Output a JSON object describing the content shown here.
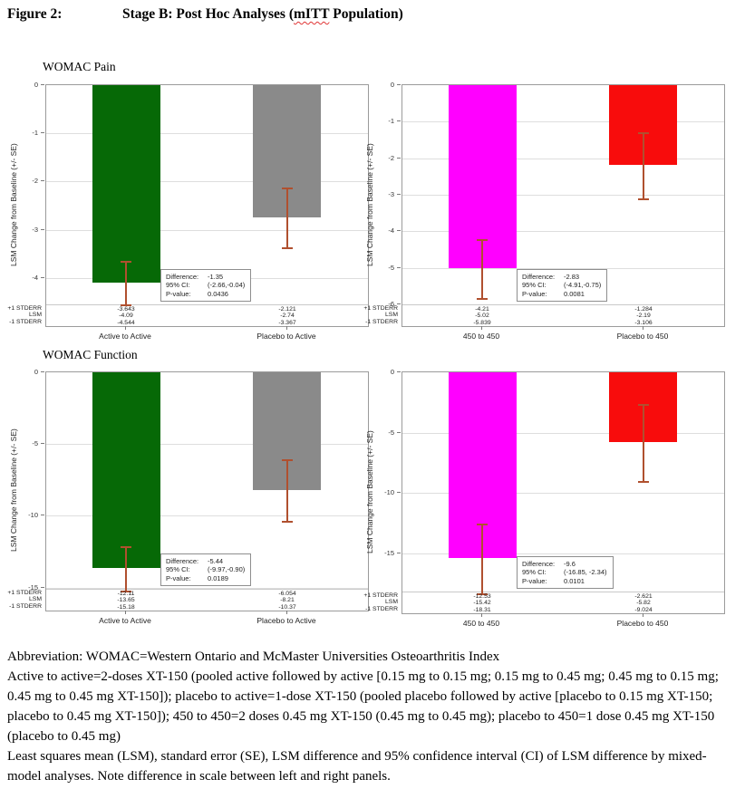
{
  "figure": {
    "label": "Figure 2:",
    "title_before": "Stage B: Post Hoc Analyses (",
    "title_misspelled": "mITT",
    "title_after": " Population)"
  },
  "stat_labels": {
    "difference": "Difference:",
    "ci": "95% CI:",
    "pvalue": "P-value:"
  },
  "row_labels": [
    "+1 STDERR",
    "LSM",
    "-1 STDERR"
  ],
  "colors": {
    "active_to_active": "#066906",
    "placebo_to_active": "#8a8a8a",
    "dose_450_to_450": "#ff00ff",
    "placebo_to_450": "#f80c0c",
    "error_bar": "#b0502f"
  },
  "chart_data": [
    {
      "type": "bar",
      "id": "womac-pain-pooled-active",
      "title": "WOMAC Pain",
      "ylabel": "LSM Change from Baseline (+/- SE)",
      "yticks": [
        0,
        -1,
        -2,
        -3,
        -4
      ],
      "ylim": [
        -5,
        0
      ],
      "categories": [
        "Active to Active",
        "Placebo to Active"
      ],
      "bars": [
        {
          "category": "Active to Active",
          "color_key": "active_to_active",
          "lsm": -4.09,
          "plus1_stderr": -3.643,
          "minus1_stderr": -4.544,
          "value_labels": [
            "-3.643",
            "-4.09",
            "-4.544"
          ]
        },
        {
          "category": "Placebo to Active",
          "color_key": "placebo_to_active",
          "lsm": -2.74,
          "plus1_stderr": -2.121,
          "minus1_stderr": -3.367,
          "value_labels": [
            "-2.121",
            "-2.74",
            "-3.367"
          ]
        }
      ],
      "stats": {
        "difference": "-1.35",
        "ci": "(-2.66,-0.04)",
        "pvalue": "0.0436"
      }
    },
    {
      "type": "bar",
      "id": "womac-pain-450",
      "title": null,
      "ylabel": "LSM Change from Baseline (+/- SE)",
      "yticks": [
        0,
        -1,
        -2,
        -3,
        -4,
        -5,
        -6
      ],
      "ylim": [
        -6.6,
        0
      ],
      "categories": [
        "450 to 450",
        "Placebo to 450"
      ],
      "bars": [
        {
          "category": "450 to 450",
          "color_key": "dose_450_to_450",
          "lsm": -5.02,
          "plus1_stderr": -4.21,
          "minus1_stderr": -5.839,
          "value_labels": [
            "-4.21",
            "-5.02",
            "-5.839"
          ]
        },
        {
          "category": "Placebo to 450",
          "color_key": "placebo_to_450",
          "lsm": -2.19,
          "plus1_stderr": -1.284,
          "minus1_stderr": -3.106,
          "value_labels": [
            "-1.284",
            "-2.19",
            "-3.106"
          ]
        }
      ],
      "stats": {
        "difference": "-2.83",
        "ci": "(-4.91,-0.75)",
        "pvalue": "0.0081"
      }
    },
    {
      "type": "bar",
      "id": "womac-function-pooled-active",
      "title": "WOMAC Function",
      "ylabel": "LSM Change from Baseline (+/- SE)",
      "yticks": [
        0,
        -5,
        -10,
        -15
      ],
      "ylim": [
        -16.6,
        0
      ],
      "categories": [
        "Active to Active",
        "Placebo to Active"
      ],
      "bars": [
        {
          "category": "Active to Active",
          "color_key": "active_to_active",
          "lsm": -13.65,
          "plus1_stderr": -12.11,
          "minus1_stderr": -15.18,
          "value_labels": [
            "-12.11",
            "-13.65",
            "-15.18"
          ]
        },
        {
          "category": "Placebo to Active",
          "color_key": "placebo_to_active",
          "lsm": -8.21,
          "plus1_stderr": -6.054,
          "minus1_stderr": -10.37,
          "value_labels": [
            "-6.054",
            "-8.21",
            "-10.37"
          ]
        }
      ],
      "stats": {
        "difference": "-5.44",
        "ci": "(-9.97,-0.90)",
        "pvalue": "0.0189"
      }
    },
    {
      "type": "bar",
      "id": "womac-function-450",
      "title": null,
      "ylabel": "LSM Change from Baseline (+/- SE)",
      "yticks": [
        0,
        -5,
        -10,
        -15
      ],
      "ylim": [
        -20,
        0
      ],
      "categories": [
        "450 to 450",
        "Placebo to 450"
      ],
      "bars": [
        {
          "category": "450 to 450",
          "color_key": "dose_450_to_450",
          "lsm": -15.42,
          "plus1_stderr": -12.53,
          "minus1_stderr": -18.31,
          "value_labels": [
            "-12.53",
            "-15.42",
            "-18.31"
          ]
        },
        {
          "category": "Placebo to 450",
          "color_key": "placebo_to_450",
          "lsm": -5.82,
          "plus1_stderr": -2.621,
          "minus1_stderr": -9.024,
          "value_labels": [
            "-2.621",
            "-5.82",
            "-9.024"
          ]
        }
      ],
      "stats": {
        "difference": "-9.6",
        "ci": "(-16.85, -2.34)",
        "pvalue": "0.0101"
      }
    }
  ],
  "footnotes": [
    "Abbreviation: WOMAC=Western Ontario and McMaster Universities Osteoarthritis Index",
    "Active to active=2-doses XT-150 (pooled active followed by active [0.15 mg to 0.15 mg; 0.15 mg to 0.45 mg; 0.45 mg to 0.15 mg; 0.45 mg to 0.45 mg XT-150]); placebo to active=1-dose XT-150 (pooled placebo followed by active [placebo to 0.15 mg XT-150; placebo to 0.45 mg XT-150]); 450 to 450=2 doses 0.45 mg XT-150 (0.45 mg to 0.45 mg); placebo to 450=1 dose 0.45 mg XT-150 (placebo to 0.45 mg)",
    "Least squares mean (LSM), standard error (SE), LSM difference and 95% confidence interval (CI) of LSM difference by mixed-model analyses. Note difference in scale between left and right panels."
  ]
}
